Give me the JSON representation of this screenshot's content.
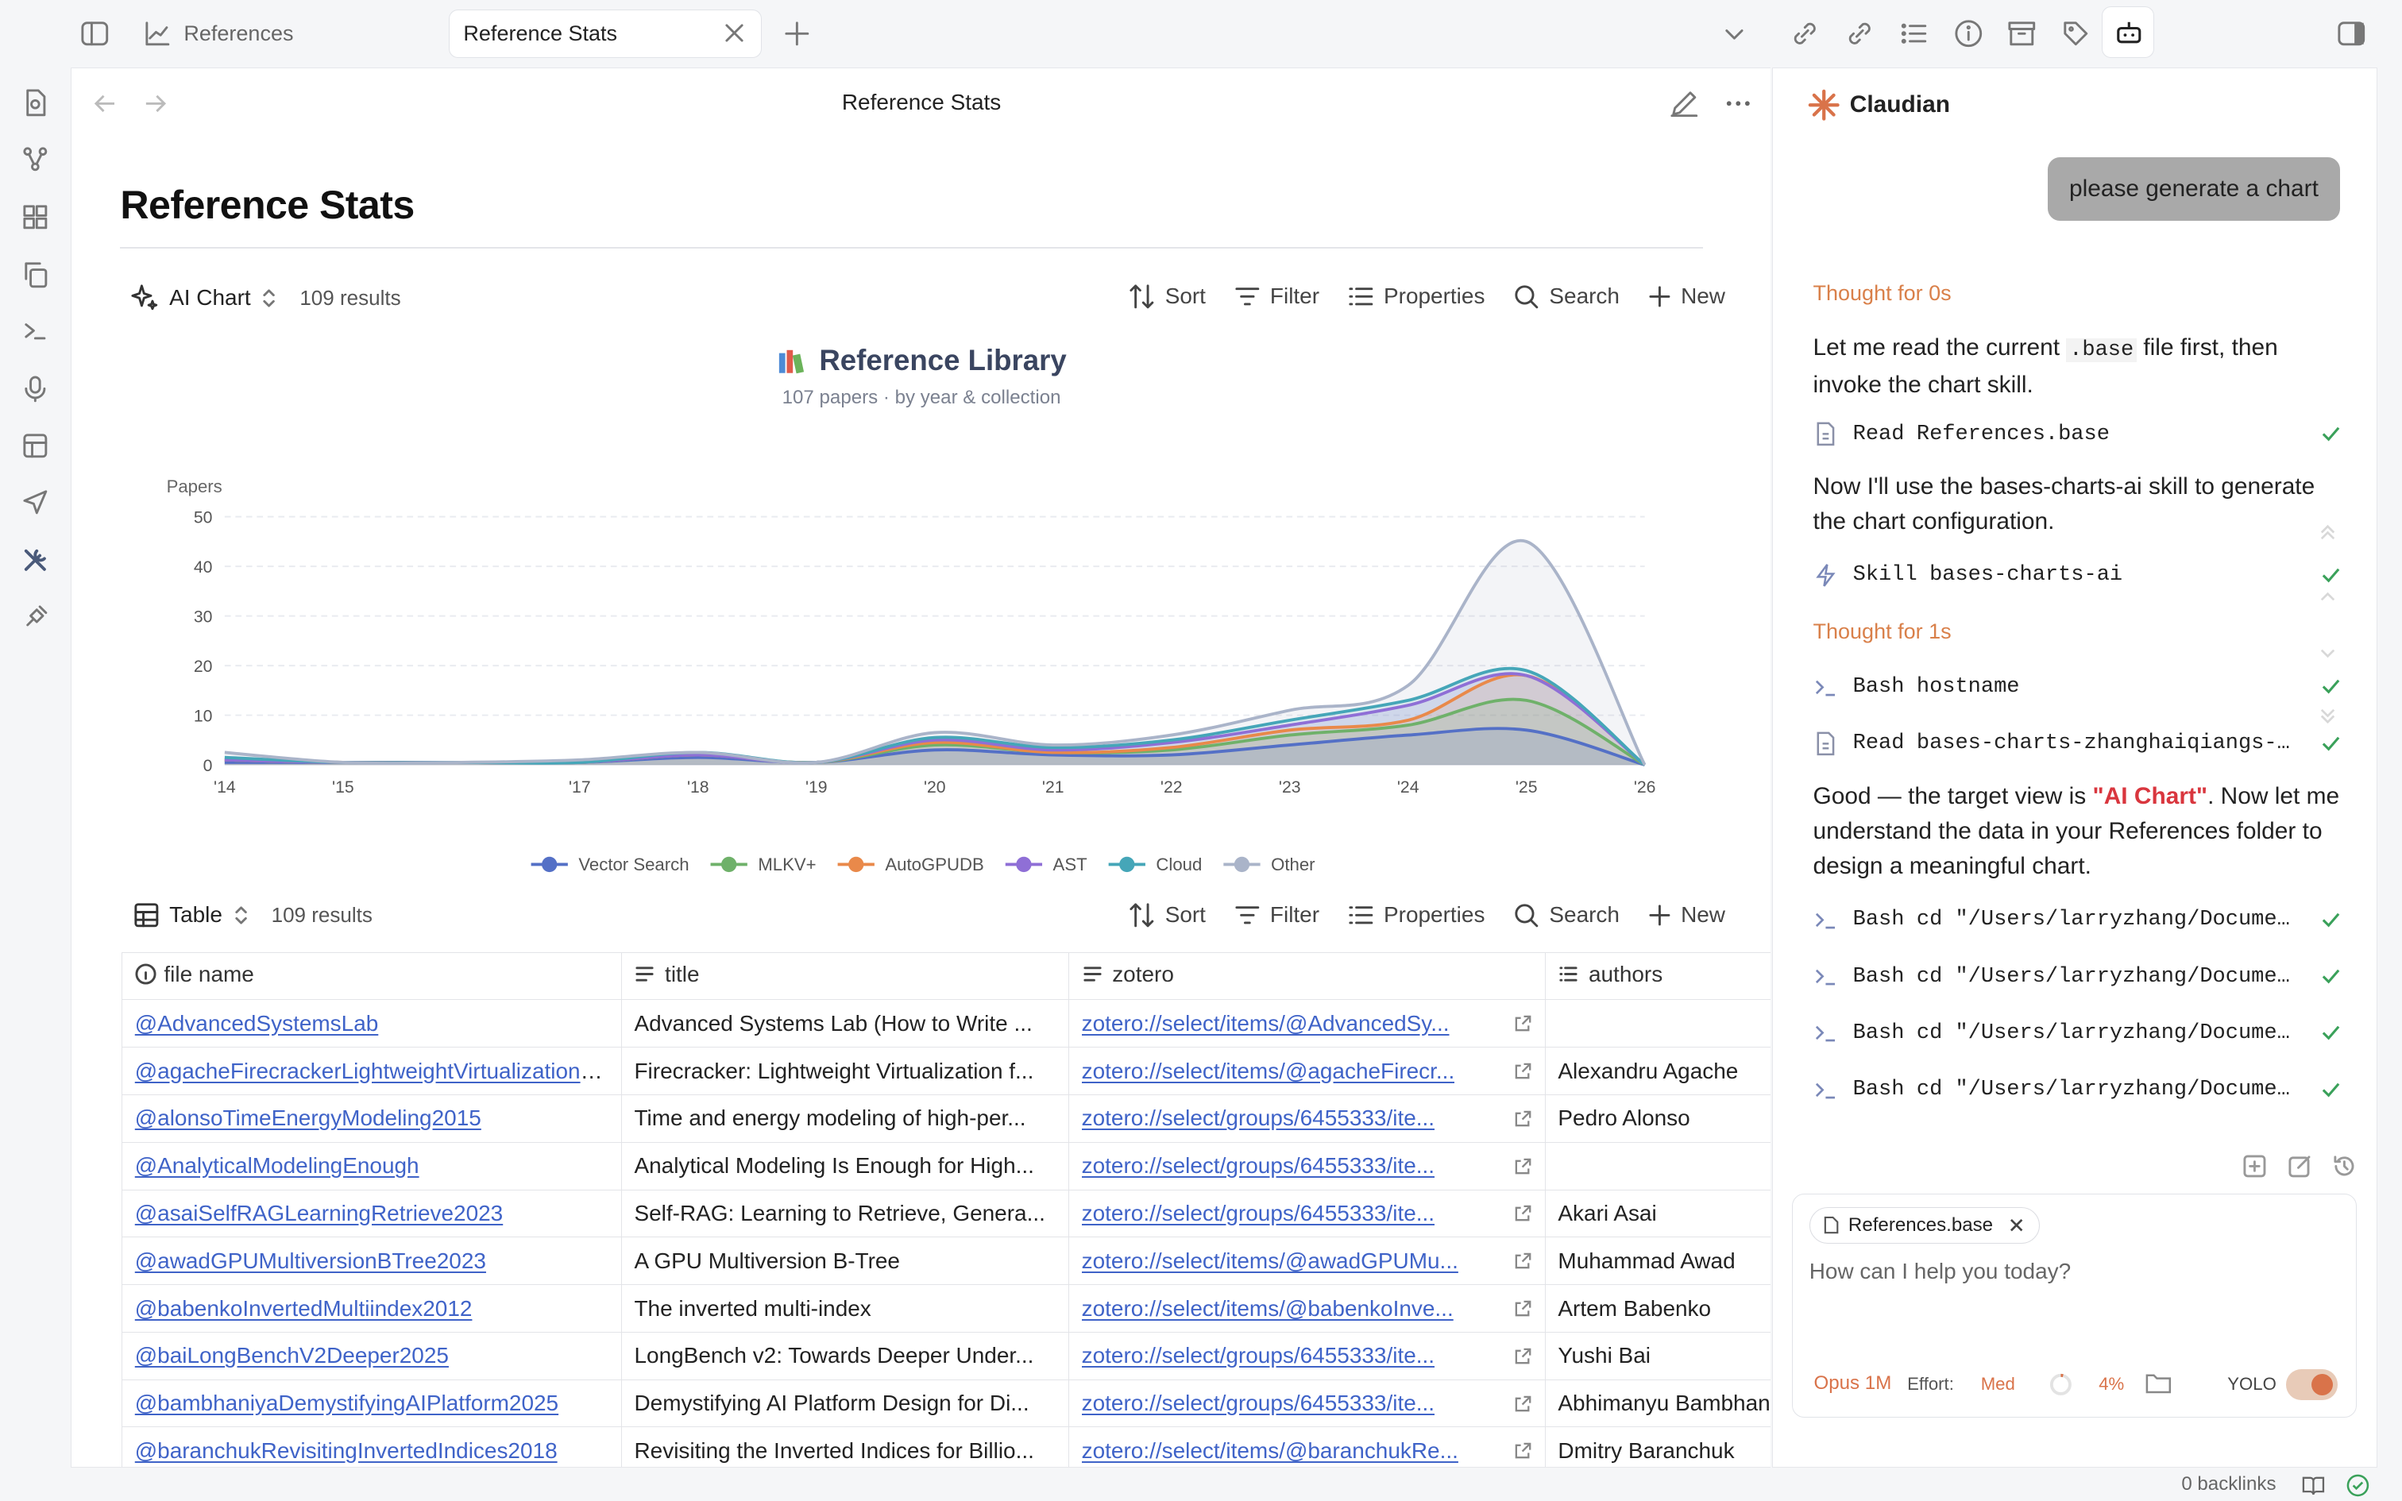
{
  "tabs": [
    {
      "label": "References",
      "active": false
    },
    {
      "label": "Reference Stats",
      "active": true
    }
  ],
  "header": {
    "title": "Reference Stats"
  },
  "page": {
    "title": "Reference Stats"
  },
  "chart_view": {
    "view_name": "AI Chart",
    "results": "109 results",
    "toolbar": [
      "Sort",
      "Filter",
      "Properties",
      "Search",
      "New"
    ]
  },
  "table_view": {
    "view_name": "Table",
    "results": "109 results",
    "toolbar": [
      "Sort",
      "Filter",
      "Properties",
      "Search",
      "New"
    ]
  },
  "chart_data": {
    "type": "area",
    "title": "Reference Library",
    "title_icon": "books-emoji",
    "subtitle": "107 papers · by year & collection",
    "ylabel": "Papers",
    "ylim": [
      0,
      50
    ],
    "y_ticks": [
      0,
      10,
      20,
      30,
      40,
      50
    ],
    "x": [
      2014,
      2015,
      2016,
      2017,
      2018,
      2019,
      2020,
      2021,
      2022,
      2023,
      2024,
      2025,
      2026
    ],
    "x_tick_labels": [
      "'14",
      "'15",
      "'17",
      "'18",
      "'19",
      "'20",
      "'21",
      "'22",
      "'23",
      "'24",
      "'25",
      "'26"
    ],
    "x_tick_years": [
      2014,
      2015,
      2017,
      2018,
      2019,
      2020,
      2021,
      2022,
      2023,
      2024,
      2025,
      2026
    ],
    "stacked": true,
    "legend_position": "bottom",
    "series": [
      {
        "name": "Vector Search",
        "color": "#5470c6",
        "values": [
          0.5,
          0.5,
          0.5,
          0.5,
          1.5,
          0.5,
          3,
          2,
          2,
          4,
          6,
          7,
          0
        ]
      },
      {
        "name": "MLKV+",
        "color": "#6fb16a",
        "values": [
          0.5,
          0,
          0,
          0,
          0.5,
          0,
          1,
          0.5,
          1,
          2,
          2,
          6,
          0
        ]
      },
      {
        "name": "AutoGPUDB",
        "color": "#e9894a",
        "values": [
          0,
          0,
          0,
          0,
          0,
          0,
          0.5,
          0,
          0.5,
          1,
          1,
          5,
          0
        ]
      },
      {
        "name": "AST",
        "color": "#8f6fd6",
        "values": [
          0,
          0,
          0,
          0,
          0,
          0,
          0.5,
          0.5,
          1,
          1,
          3,
          0,
          0
        ]
      },
      {
        "name": "Cloud",
        "color": "#45a6b8",
        "values": [
          0.5,
          0,
          0,
          0,
          0.5,
          0,
          0.5,
          0.5,
          0.5,
          1,
          1,
          1,
          0
        ]
      },
      {
        "name": "Other",
        "color": "#aab4c9",
        "values": [
          1,
          0,
          0,
          0.5,
          0,
          0,
          1,
          0.5,
          1,
          2,
          3,
          26,
          0
        ]
      }
    ]
  },
  "table": {
    "columns": [
      "file name",
      "title",
      "zotero",
      "authors"
    ],
    "rows": [
      {
        "file": "@AdvancedSystemsLab",
        "title": "Advanced Systems Lab (How to Write ...",
        "zotero": "zotero://select/items/@AdvancedSy...",
        "authors": ""
      },
      {
        "file": "@agacheFirecrackerLightweightVirtualization2020",
        "title": "Firecracker: Lightweight Virtualization f...",
        "zotero": "zotero://select/items/@agacheFirecr...",
        "authors": "Alexandru Agache"
      },
      {
        "file": "@alonsoTimeEnergyModeling2015",
        "title": "Time and energy modeling of high-per...",
        "zotero": "zotero://select/groups/6455333/ite...",
        "authors": "Pedro Alonso"
      },
      {
        "file": "@AnalyticalModelingEnough",
        "title": "Analytical Modeling Is Enough for High...",
        "zotero": "zotero://select/groups/6455333/ite...",
        "authors": ""
      },
      {
        "file": "@asaiSelfRAGLearningRetrieve2023",
        "title": "Self-RAG: Learning to Retrieve, Genera...",
        "zotero": "zotero://select/groups/6455333/ite...",
        "authors": "Akari Asai"
      },
      {
        "file": "@awadGPUMultiversionBTree2023",
        "title": "A GPU Multiversion B-Tree",
        "zotero": "zotero://select/items/@awadGPUMu...",
        "authors": "Muhammad Awad"
      },
      {
        "file": "@babenkoInvertedMultiindex2012",
        "title": "The inverted multi-index",
        "zotero": "zotero://select/items/@babenkoInve...",
        "authors": "Artem Babenko"
      },
      {
        "file": "@baiLongBenchV2Deeper2025",
        "title": "LongBench v2: Towards Deeper Under...",
        "zotero": "zotero://select/groups/6455333/ite...",
        "authors": "Yushi Bai"
      },
      {
        "file": "@bambhaniyaDemystifyingAIPlatform2025",
        "title": "Demystifying AI Platform Design for Di...",
        "zotero": "zotero://select/groups/6455333/ite...",
        "authors": "Abhimanyu Bambhaniya"
      },
      {
        "file": "@baranchukRevisitingInvertedIndices2018",
        "title": "Revisiting the Inverted Indices for Billio...",
        "zotero": "zotero://select/items/@baranchukRe...",
        "authors": "Dmitry Baranchuk"
      }
    ]
  },
  "assistant": {
    "name": "Claudian",
    "user_message": "please generate a chart",
    "thought1": "Thought for 0s",
    "p1_before": "Let me read the current ",
    "p1_code": ".base",
    "p1_after": " file first, then invoke the chart skill.",
    "tool1": {
      "name": "Read",
      "arg": "References.base"
    },
    "p2": "Now I'll use the bases-charts-ai skill to generate the chart configuration.",
    "tool2": {
      "name": "Skill",
      "arg": "bases-charts-ai"
    },
    "thought2": "Thought for 1s",
    "tool3": {
      "name": "Bash",
      "arg": "hostname"
    },
    "tool4": {
      "name": "Read",
      "arg": "bases-charts-zhanghaiqiangs-..."
    },
    "p3_before": "Good — the target view is ",
    "p3_highlight": "\"AI Chart\"",
    "p3_after": ". Now let me understand the data in your References folder to design a meaningful chart.",
    "bash_rows": [
      "cd \"/Users/larryzhang/Docume...",
      "cd \"/Users/larryzhang/Docume...",
      "cd \"/Users/larryzhang/Docume...",
      "cd \"/Users/larryzhang/Docume..."
    ],
    "bash_label": "Bash",
    "attachment": "References.base",
    "input_placeholder": "How can I help you today?",
    "model": "Opus 1M",
    "effort_label": "Effort:",
    "effort_value": "Med",
    "context_pct": "4%",
    "yolo_label": "YOLO"
  },
  "status_bar": {
    "backlinks": "0 backlinks"
  }
}
